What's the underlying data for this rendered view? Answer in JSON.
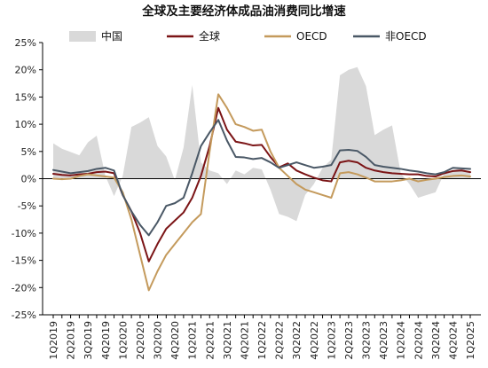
{
  "chart_data": {
    "type": "line",
    "title": "全球及主要经济体成品油消费同比增速",
    "xlabel": "",
    "ylabel": "",
    "ylim": [
      -25,
      25
    ],
    "yticks": [
      "25%",
      "20%",
      "15%",
      "10%",
      "5%",
      "0%",
      "-5%",
      "-10%",
      "-15%",
      "-20%",
      "-25%"
    ],
    "grid": false,
    "legend_position": "top",
    "categories": [
      "1Q2019",
      "",
      "2Q2019",
      "",
      "3Q2019",
      "",
      "4Q2019",
      "",
      "1Q2020",
      "",
      "2Q2020",
      "",
      "3Q2020",
      "",
      "4Q2020",
      "",
      "1Q2021",
      "",
      "2Q2021",
      "",
      "3Q2021",
      "",
      "4Q2021",
      "",
      "1Q2022",
      "",
      "2Q2022",
      "",
      "3Q2022",
      "",
      "4Q2022",
      "",
      "1Q2023",
      "",
      "2Q2023",
      "",
      "3Q2023",
      "",
      "4Q2023",
      "",
      "1Q2024",
      "",
      "2Q2024",
      "",
      "3Q2024",
      "",
      "4Q2024",
      "",
      "1Q2025"
    ],
    "series": [
      {
        "name": "中国",
        "style": "area",
        "color": "#d9d9d9",
        "values": [
          6.5,
          5.5,
          4.9,
          4.3,
          6.7,
          7.9,
          0.5,
          -3.2,
          0.5,
          9.5,
          10.3,
          11.3,
          6.0,
          4.1,
          -0.3,
          5.7,
          17.2,
          3.0,
          1.5,
          1.0,
          -1.0,
          1.5,
          0.8,
          2.0,
          1.7,
          -2.0,
          -6.5,
          -7.0,
          -7.8,
          -3.0,
          -1.0,
          2.0,
          3.5,
          19.0,
          20.0,
          20.5,
          17.0,
          8.0,
          9.0,
          9.8,
          1.0,
          -1.0,
          -3.5,
          -3.0,
          -2.5,
          1.0,
          1.5,
          2.0,
          1.0
        ]
      },
      {
        "name": "全球",
        "style": "line",
        "color": "#7b1416",
        "values": [
          0.9,
          0.7,
          0.6,
          0.8,
          0.9,
          1.2,
          1.3,
          1.0,
          -3.0,
          -6.0,
          -10.0,
          -15.2,
          -12.0,
          -9.2,
          -7.7,
          -6.2,
          -3.5,
          0.5,
          6.0,
          13.0,
          9.0,
          6.8,
          6.5,
          6.1,
          6.2,
          4.0,
          2.1,
          2.8,
          1.5,
          0.8,
          0.2,
          -0.3,
          -0.5,
          3.0,
          3.3,
          3.0,
          2.0,
          1.5,
          1.2,
          1.0,
          0.9,
          0.8,
          0.8,
          0.5,
          0.4,
          1.0,
          1.4,
          1.5,
          1.2
        ]
      },
      {
        "name": "OECD",
        "style": "line",
        "color": "#c49a5c",
        "values": [
          0.0,
          -0.1,
          0.0,
          0.5,
          0.8,
          0.6,
          0.4,
          0.2,
          -2.5,
          -7.5,
          -14.0,
          -20.5,
          -17.0,
          -14.0,
          -12.0,
          -10.0,
          -8.0,
          -6.5,
          5.0,
          15.5,
          13.0,
          10.0,
          9.5,
          8.8,
          9.0,
          5.0,
          2.0,
          0.5,
          -1.0,
          -2.0,
          -2.5,
          -3.0,
          -3.5,
          1.0,
          1.2,
          0.8,
          0.2,
          -0.5,
          -0.5,
          -0.5,
          -0.3,
          0.0,
          -0.5,
          -0.2,
          0.0,
          0.3,
          0.5,
          0.6,
          0.4
        ]
      },
      {
        "name": "非OECD",
        "style": "line",
        "color": "#4a5866",
        "values": [
          1.6,
          1.3,
          1.0,
          1.2,
          1.4,
          1.8,
          2.0,
          1.5,
          -3.0,
          -6.0,
          -8.5,
          -10.4,
          -8.0,
          -5.0,
          -4.5,
          -3.5,
          1.0,
          6.0,
          8.5,
          10.8,
          7.0,
          4.0,
          3.9,
          3.6,
          3.8,
          3.0,
          2.0,
          2.5,
          3.0,
          2.5,
          2.0,
          2.2,
          2.5,
          5.2,
          5.3,
          5.1,
          4.0,
          2.5,
          2.2,
          2.0,
          1.8,
          1.5,
          1.3,
          1.0,
          0.8,
          1.2,
          2.0,
          1.9,
          1.8
        ]
      }
    ]
  }
}
